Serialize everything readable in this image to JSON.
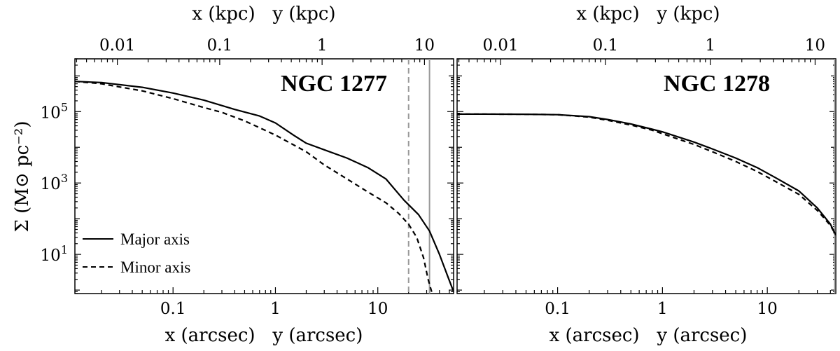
{
  "chart_data": [
    {
      "type": "line",
      "title": "NGC 1277",
      "xlabel": "x (arcsec)   y (arcsec)",
      "x2label": "x (kpc)   y (kpc)",
      "ylabel": "Σ (M⊙ pc⁻²)",
      "x_scale": "log",
      "y_scale": "log",
      "xlim": [
        0.011,
        55
      ],
      "ylim": [
        0.8,
        3000000
      ],
      "x_ticks": [
        {
          "value": 0.1,
          "label": "0.1"
        },
        {
          "value": 1,
          "label": "1"
        },
        {
          "value": 10,
          "label": "10"
        }
      ],
      "x2_ticks": [
        {
          "value": 0.01,
          "label": "0.01"
        },
        {
          "value": 0.1,
          "label": "0.1"
        },
        {
          "value": 1,
          "label": "1"
        },
        {
          "value": 10,
          "label": "10"
        }
      ],
      "kpc_per_arcsec": 0.35,
      "y_ticks": [
        {
          "value": 10,
          "label": "10",
          "exp": "1"
        },
        {
          "value": 1000,
          "label": "10",
          "exp": "3"
        },
        {
          "value": 100000,
          "label": "10",
          "exp": "5"
        }
      ],
      "vlines": [
        {
          "x": 20,
          "style": "dashed",
          "color": "#999999"
        },
        {
          "x": 32,
          "style": "solid",
          "color": "#999999"
        }
      ],
      "legend": {
        "placement": "lower-left",
        "entries": [
          {
            "label": "Major axis",
            "style": "solid"
          },
          {
            "label": "Minor axis",
            "style": "dashed"
          }
        ]
      },
      "series": [
        {
          "name": "Major axis",
          "style": "solid",
          "x": [
            0.011,
            0.02,
            0.05,
            0.1,
            0.2,
            0.4,
            0.7,
            1,
            1.5,
            2,
            3,
            5,
            8,
            12,
            18,
            25,
            32,
            40,
            48,
            55
          ],
          "y": [
            700000,
            650000,
            480000,
            330000,
            210000,
            115000,
            75000,
            48000,
            22000,
            13000,
            8500,
            5000,
            2700,
            1300,
            330,
            130,
            45,
            10,
            2.5,
            0.9
          ]
        },
        {
          "name": "Minor axis",
          "style": "dashed",
          "x": [
            0.011,
            0.02,
            0.05,
            0.1,
            0.2,
            0.3,
            0.5,
            1,
            2,
            3,
            5,
            8,
            12,
            16,
            20,
            24,
            28,
            31,
            34
          ],
          "y": [
            700000,
            600000,
            380000,
            230000,
            130000,
            95000,
            55000,
            22000,
            7500,
            3200,
            1300,
            560,
            280,
            140,
            70,
            30,
            8,
            2,
            0.8
          ]
        }
      ]
    },
    {
      "type": "line",
      "title": "NGC 1278",
      "xlabel": "x (arcsec)   y (arcsec)",
      "x2label": "x (kpc)   y (kpc)",
      "x_scale": "log",
      "y_scale": "log",
      "xlim": [
        0.011,
        45
      ],
      "ylim": [
        0.8,
        3000000
      ],
      "x_ticks": [
        {
          "value": 0.1,
          "label": "0.1"
        },
        {
          "value": 1,
          "label": "1"
        },
        {
          "value": 10,
          "label": "10"
        }
      ],
      "x2_ticks": [
        {
          "value": 0.01,
          "label": "0.01"
        },
        {
          "value": 0.1,
          "label": "0.1"
        },
        {
          "value": 1,
          "label": "1"
        },
        {
          "value": 10,
          "label": "10"
        }
      ],
      "kpc_per_arcsec": 0.35,
      "vlines": [
        {
          "x": 44,
          "style": "solid",
          "color": "#999999"
        }
      ],
      "series": [
        {
          "name": "Major axis",
          "style": "solid",
          "x": [
            0.011,
            0.02,
            0.05,
            0.1,
            0.2,
            0.3,
            0.5,
            0.8,
            1,
            2,
            3,
            5,
            8,
            12,
            20,
            30,
            40,
            45
          ],
          "y": [
            85000,
            85000,
            84000,
            82000,
            72000,
            60000,
            45000,
            32000,
            27000,
            14000,
            9000,
            5000,
            2700,
            1400,
            600,
            200,
            70,
            35
          ]
        },
        {
          "name": "Minor axis",
          "style": "dashed",
          "x": [
            0.011,
            0.02,
            0.05,
            0.1,
            0.2,
            0.3,
            0.5,
            0.8,
            1,
            2,
            3,
            5,
            8,
            12,
            20,
            30,
            40,
            45
          ],
          "y": [
            85000,
            85000,
            84000,
            82000,
            70000,
            57000,
            42000,
            30000,
            24000,
            12000,
            7500,
            4000,
            2100,
            1100,
            480,
            170,
            65,
            35
          ]
        }
      ]
    }
  ]
}
